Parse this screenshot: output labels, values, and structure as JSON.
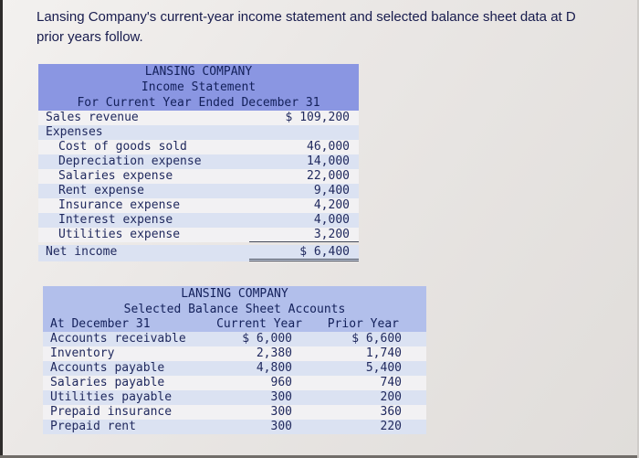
{
  "colors": {
    "income_header_bg": "#8a96e2",
    "balance_header_bg": "#b2bfeb",
    "row_tint": "#dbe2f2",
    "row_plain": "#f2f1f3",
    "table_text": "#20295e"
  },
  "intro": {
    "line1": "Lansing Company's current-year income statement and selected balance sheet data at D",
    "line2": "prior years follow."
  },
  "income_statement": {
    "title": "LANSING COMPANY",
    "subtitle": "Income Statement",
    "period": "For Current Year Ended December 31",
    "rows": [
      {
        "label": "Sales revenue",
        "amount": "$ 109,200"
      },
      {
        "label": "Expenses",
        "amount": ""
      },
      {
        "label": "Cost of goods sold",
        "amount": "46,000"
      },
      {
        "label": "Depreciation expense",
        "amount": "14,000"
      },
      {
        "label": "Salaries expense",
        "amount": "22,000"
      },
      {
        "label": "Rent expense",
        "amount": "9,400"
      },
      {
        "label": "Insurance expense",
        "amount": "4,200"
      },
      {
        "label": "Interest expense",
        "amount": "4,000"
      },
      {
        "label": "Utilities expense",
        "amount": "3,200"
      },
      {
        "label": "Net income",
        "amount": "$ 6,400"
      }
    ]
  },
  "balance_sheet": {
    "title": "LANSING COMPANY",
    "subtitle": "Selected Balance Sheet Accounts",
    "columns": {
      "label": "At December 31",
      "current": "Current Year",
      "prior": "Prior Year"
    },
    "rows": [
      {
        "label": "Accounts receivable",
        "current": "$ 6,000",
        "prior": "$ 6,600"
      },
      {
        "label": "Inventory",
        "current": "2,380",
        "prior": "1,740"
      },
      {
        "label": "Accounts payable",
        "current": "4,800",
        "prior": "5,400"
      },
      {
        "label": "Salaries payable",
        "current": "960",
        "prior": "740"
      },
      {
        "label": "Utilities payable",
        "current": "300",
        "prior": "200"
      },
      {
        "label": "Prepaid insurance",
        "current": "300",
        "prior": "360"
      },
      {
        "label": "Prepaid rent",
        "current": "300",
        "prior": "220"
      }
    ]
  }
}
